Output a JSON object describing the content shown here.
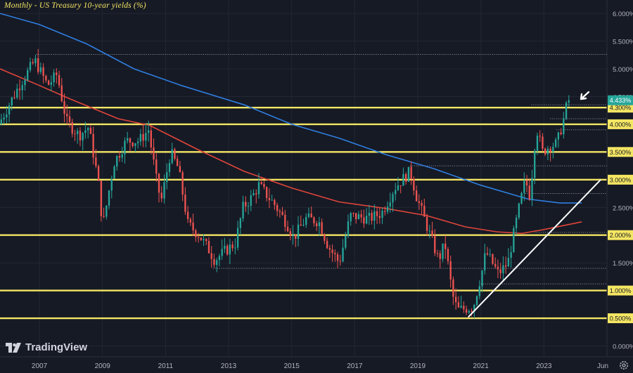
{
  "title": "Monthly - US Treasury 10-year yields (%)",
  "branding": {
    "logo_text": "TradingView",
    "logo_icon": "tradingview-logo-icon"
  },
  "settings_icon": "gear-icon",
  "colors": {
    "background": "#161a25",
    "grid": "#232734",
    "axis_text": "#b2b5be",
    "up": "#26a69a",
    "down": "#ef5350",
    "level_line": "#f5e663",
    "ma_long": "#2f7ee0",
    "ma_short": "#e0453a",
    "trendline": "#ffffff",
    "price_tag": "#26a69a"
  },
  "chart_data": {
    "type": "candlestick",
    "title": "Monthly - US Treasury 10-year yields (%)",
    "xlabel": "",
    "ylabel": "",
    "x_range": [
      2005.75,
      2025.0
    ],
    "ylim": [
      -0.15,
      6.35
    ],
    "y_ticks": [
      "6.000%",
      "5.500%",
      "5.000%",
      "4.500%",
      "4.000%",
      "3.500%",
      "3.000%",
      "2.500%",
      "2.000%",
      "1.500%",
      "1.000%",
      "0.500%",
      "0.000%"
    ],
    "x_ticks": [
      "2007",
      "2009",
      "2011",
      "2013",
      "2015",
      "2017",
      "2019",
      "2021",
      "2023",
      "Jun"
    ],
    "last_price": {
      "value": 4.433,
      "label": "4.433%"
    },
    "horizontal_levels": [
      {
        "value": 4.3,
        "label": "4.300%"
      },
      {
        "value": 4.0,
        "label": "4.000%"
      },
      {
        "value": 3.5,
        "label": "3.500%"
      },
      {
        "value": 3.0,
        "label": "3.000%"
      },
      {
        "value": 2.0,
        "label": "2.000%"
      },
      {
        "value": 1.0,
        "label": "1.000%"
      },
      {
        "value": 0.5,
        "label": "0.500%"
      }
    ],
    "dotted_levels": [
      {
        "value": 5.26,
        "from": 2006.9
      },
      {
        "value": 4.35,
        "from": 2022.6
      },
      {
        "value": 4.1,
        "from": 2023.2
      },
      {
        "value": 3.9,
        "from": 2023.4
      },
      {
        "value": 3.25,
        "from": 2018.75
      },
      {
        "value": 2.75,
        "from": 2022.4
      },
      {
        "value": 2.05,
        "from": 2022.7
      },
      {
        "value": 1.4,
        "from": 2012.5
      },
      {
        "value": 1.12,
        "from": 2021.0
      }
    ],
    "trendline": {
      "start": [
        2020.6,
        0.52
      ],
      "end": [
        2024.8,
        3.0
      ]
    },
    "series": [
      {
        "name": "",
        "type": "ma",
        "points": [
          [
            2005.75,
            6.0
          ],
          [
            2007,
            5.8
          ],
          [
            2008.5,
            5.45
          ],
          [
            2010,
            5.0
          ],
          [
            2011.5,
            4.7
          ],
          [
            2013.5,
            4.35
          ],
          [
            2015,
            4.0
          ],
          [
            2016.5,
            3.75
          ],
          [
            2018,
            3.45
          ],
          [
            2019.5,
            3.2
          ],
          [
            2021,
            2.9
          ],
          [
            2022.5,
            2.65
          ],
          [
            2023.5,
            2.58
          ],
          [
            2024.2,
            2.58
          ]
        ]
      },
      {
        "name": "",
        "type": "ma",
        "points": [
          [
            2005.75,
            5.0
          ],
          [
            2007,
            4.7
          ],
          [
            2008,
            4.45
          ],
          [
            2009.5,
            4.1
          ],
          [
            2010.5,
            3.98
          ],
          [
            2012,
            3.55
          ],
          [
            2013.5,
            3.15
          ],
          [
            2015,
            2.85
          ],
          [
            2016.5,
            2.6
          ],
          [
            2018,
            2.48
          ],
          [
            2019.3,
            2.35
          ],
          [
            2020.5,
            2.15
          ],
          [
            2021.5,
            2.06
          ],
          [
            2022.3,
            2.03
          ],
          [
            2023,
            2.1
          ],
          [
            2024.2,
            2.24
          ]
        ]
      }
    ],
    "anchors": [
      [
        2005.75,
        4.0
      ],
      [
        2006.4,
        4.7
      ],
      [
        2006.9,
        5.15
      ],
      [
        2007.3,
        4.7
      ],
      [
        2007.6,
        4.9
      ],
      [
        2007.9,
        4.05
      ],
      [
        2008.3,
        3.8
      ],
      [
        2008.6,
        3.95
      ],
      [
        2008.9,
        3.0
      ],
      [
        2009.05,
        2.15
      ],
      [
        2009.4,
        3.3
      ],
      [
        2009.8,
        3.7
      ],
      [
        2010.2,
        3.7
      ],
      [
        2010.5,
        3.9
      ],
      [
        2010.75,
        3.0
      ],
      [
        2010.9,
        2.6
      ],
      [
        2011.2,
        3.5
      ],
      [
        2011.45,
        3.2
      ],
      [
        2011.75,
        2.2
      ],
      [
        2012.1,
        2.0
      ],
      [
        2012.4,
        1.75
      ],
      [
        2012.6,
        1.55
      ],
      [
        2012.9,
        1.7
      ],
      [
        2013.25,
        1.85
      ],
      [
        2013.5,
        2.5
      ],
      [
        2013.8,
        2.7
      ],
      [
        2014.0,
        2.9
      ],
      [
        2014.5,
        2.55
      ],
      [
        2014.9,
        2.2
      ],
      [
        2015.1,
        1.95
      ],
      [
        2015.5,
        2.3
      ],
      [
        2015.9,
        2.25
      ],
      [
        2016.2,
        1.8
      ],
      [
        2016.55,
        1.5
      ],
      [
        2016.9,
        2.35
      ],
      [
        2017.5,
        2.3
      ],
      [
        2017.9,
        2.4
      ],
      [
        2018.3,
        2.85
      ],
      [
        2018.8,
        3.15
      ],
      [
        2019.0,
        2.7
      ],
      [
        2019.4,
        2.05
      ],
      [
        2019.7,
        1.55
      ],
      [
        2019.9,
        1.85
      ],
      [
        2020.15,
        0.9
      ],
      [
        2020.3,
        0.65
      ],
      [
        2020.8,
        0.7
      ],
      [
        2021.1,
        1.4
      ],
      [
        2021.2,
        1.7
      ],
      [
        2021.6,
        1.3
      ],
      [
        2021.9,
        1.5
      ],
      [
        2022.2,
        2.35
      ],
      [
        2022.45,
        3.0
      ],
      [
        2022.6,
        2.7
      ],
      [
        2022.8,
        3.95
      ],
      [
        2023.0,
        3.5
      ],
      [
        2023.2,
        3.6
      ],
      [
        2023.45,
        3.65
      ],
      [
        2023.65,
        4.05
      ],
      [
        2023.75,
        4.3
      ],
      [
        2023.85,
        4.433
      ]
    ],
    "candle_count": 217,
    "start_year": 2005.75,
    "month_step": 0.08333
  }
}
